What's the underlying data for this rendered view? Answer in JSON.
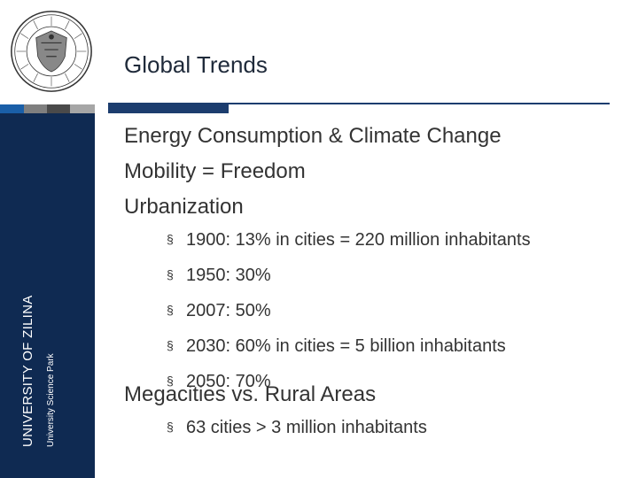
{
  "sidebar": {
    "university_name": "UNIVERSITY OF ZILINA",
    "subtitle": "University Science Park"
  },
  "slide": {
    "title": "Global Trends",
    "bullet_symbol": "§",
    "items": [
      "Energy Consumption & Climate Change",
      "Mobility = Freedom",
      "Urbanization"
    ],
    "urbanization_points": [
      "1900: 13% in cities = 220 million inhabitants",
      "1950: 30%",
      "2007: 50%",
      "2030: 60% in cities = 5 billion inhabitants",
      "2050: 70%"
    ],
    "megacities_heading": "Megacities vs. Rural Areas",
    "megacities_points": [
      "63 cities > 3 million inhabitants"
    ]
  },
  "colors": {
    "sidebar": "#0f2a52",
    "accent_bar": "#1c3d6e"
  }
}
